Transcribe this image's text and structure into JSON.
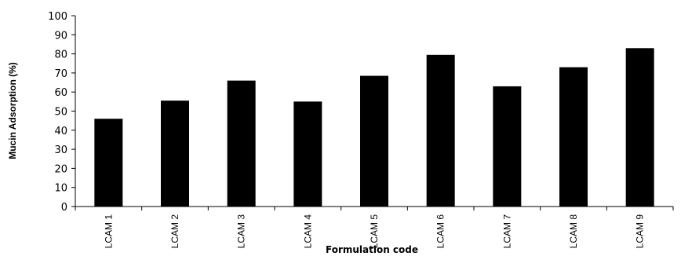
{
  "chart_data": {
    "type": "bar",
    "categories": [
      "LCAM 1",
      "LCAM 2",
      "LCAM 3",
      "LCAM 4",
      "LCAM 5",
      "LCAM 6",
      "LCAM 7",
      "LCAM 8",
      "LCAM 9"
    ],
    "values": [
      46,
      55.5,
      66,
      55,
      68.5,
      79.5,
      63,
      73,
      83
    ],
    "xlabel": "Formulation code",
    "ylabel": "Mucin Adsorption (%)",
    "ylim": [
      0,
      100
    ],
    "yticks": [
      0,
      10,
      20,
      30,
      40,
      50,
      60,
      70,
      80,
      90,
      100
    ],
    "grid": false,
    "bar_color": "#000000"
  }
}
